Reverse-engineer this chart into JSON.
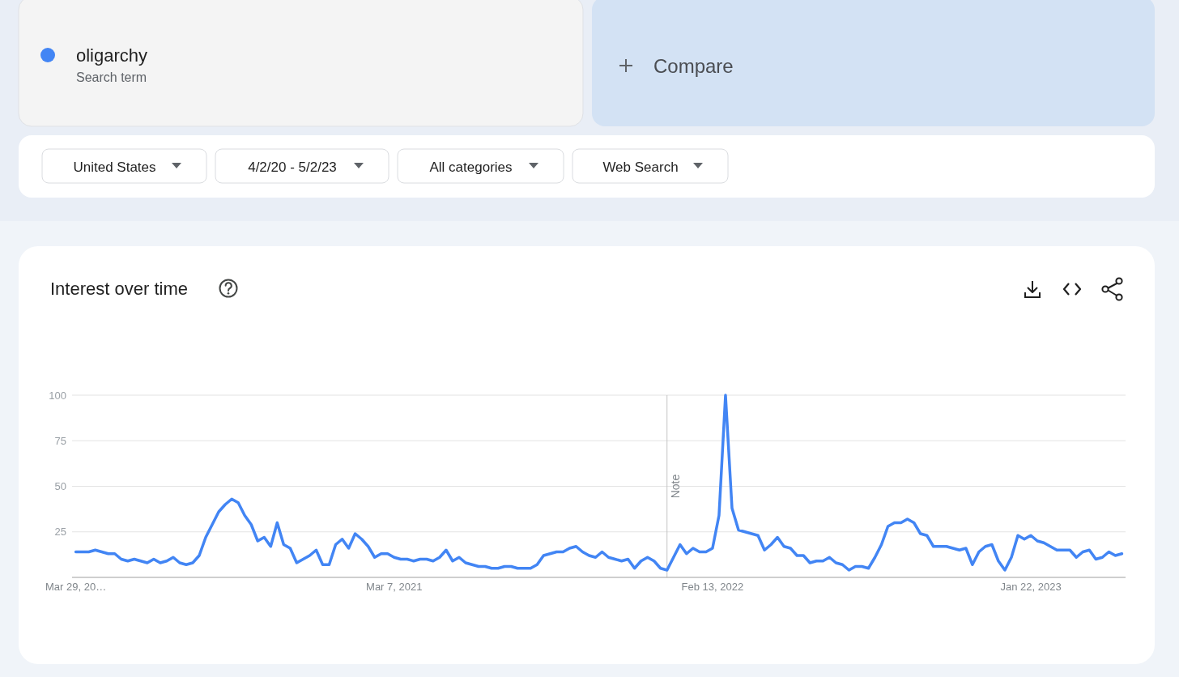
{
  "chart_data": {
    "type": "line",
    "title": "Interest over time",
    "x": [
      "2020-03-29",
      "2020-04-05",
      "2020-04-12",
      "2020-04-19",
      "2020-04-26",
      "2020-05-03",
      "2020-05-10",
      "2020-05-17",
      "2020-05-24",
      "2020-05-31",
      "2020-06-07",
      "2020-06-14",
      "2020-06-21",
      "2020-06-28",
      "2020-07-05",
      "2020-07-12",
      "2020-07-19",
      "2020-07-26",
      "2020-08-02",
      "2020-08-09",
      "2020-08-16",
      "2020-08-23",
      "2020-08-30",
      "2020-09-06",
      "2020-09-13",
      "2020-09-20",
      "2020-09-27",
      "2020-10-04",
      "2020-10-11",
      "2020-10-18",
      "2020-10-25",
      "2020-11-01",
      "2020-11-08",
      "2020-11-15",
      "2020-11-22",
      "2020-11-29",
      "2020-12-06",
      "2020-12-13",
      "2020-12-20",
      "2020-12-27",
      "2021-01-03",
      "2021-01-10",
      "2021-01-17",
      "2021-01-24",
      "2021-01-31",
      "2021-02-07",
      "2021-02-14",
      "2021-02-21",
      "2021-02-28",
      "2021-03-07",
      "2021-03-14",
      "2021-03-21",
      "2021-03-28",
      "2021-04-04",
      "2021-04-11",
      "2021-04-18",
      "2021-04-25",
      "2021-05-02",
      "2021-05-09",
      "2021-05-16",
      "2021-05-23",
      "2021-05-30",
      "2021-06-06",
      "2021-06-13",
      "2021-06-20",
      "2021-06-27",
      "2021-07-04",
      "2021-07-11",
      "2021-07-18",
      "2021-07-25",
      "2021-08-01",
      "2021-08-08",
      "2021-08-15",
      "2021-08-22",
      "2021-08-29",
      "2021-09-05",
      "2021-09-12",
      "2021-09-19",
      "2021-09-26",
      "2021-10-03",
      "2021-10-10",
      "2021-10-17",
      "2021-10-24",
      "2021-10-31",
      "2021-11-07",
      "2021-11-14",
      "2021-11-21",
      "2021-11-28",
      "2021-12-05",
      "2021-12-12",
      "2021-12-19",
      "2021-12-26",
      "2022-01-02",
      "2022-01-09",
      "2022-01-16",
      "2022-01-23",
      "2022-01-30",
      "2022-02-06",
      "2022-02-13",
      "2022-02-20",
      "2022-02-27",
      "2022-03-06",
      "2022-03-13",
      "2022-03-20",
      "2022-03-27",
      "2022-04-03",
      "2022-04-10",
      "2022-04-17",
      "2022-04-24",
      "2022-05-01",
      "2022-05-08",
      "2022-05-15",
      "2022-05-22",
      "2022-05-29",
      "2022-06-05",
      "2022-06-12",
      "2022-06-19",
      "2022-06-26",
      "2022-07-03",
      "2022-07-10",
      "2022-07-17",
      "2022-07-24",
      "2022-07-31",
      "2022-08-07",
      "2022-08-14",
      "2022-08-21",
      "2022-08-28",
      "2022-09-04",
      "2022-09-11",
      "2022-09-18",
      "2022-09-25",
      "2022-10-02",
      "2022-10-09",
      "2022-10-16",
      "2022-10-23",
      "2022-10-30",
      "2022-11-06",
      "2022-11-13",
      "2022-11-20",
      "2022-11-27",
      "2022-12-04",
      "2022-12-11",
      "2022-12-18",
      "2022-12-25",
      "2023-01-01",
      "2023-01-08",
      "2023-01-15",
      "2023-01-22",
      "2023-01-29",
      "2023-02-05",
      "2023-02-12",
      "2023-02-19",
      "2023-02-26",
      "2023-03-05",
      "2023-03-12",
      "2023-03-19",
      "2023-03-26",
      "2023-04-02",
      "2023-04-09",
      "2023-04-16",
      "2023-04-23",
      "2023-04-30"
    ],
    "series": [
      {
        "name": "oligarchy",
        "color": "#4285f4",
        "values": [
          14,
          14,
          14,
          15,
          14,
          13,
          13,
          10,
          9,
          10,
          9,
          8,
          10,
          8,
          9,
          11,
          8,
          7,
          8,
          12,
          22,
          29,
          36,
          40,
          43,
          41,
          34,
          29,
          20,
          22,
          17,
          30,
          18,
          16,
          8,
          10,
          12,
          15,
          7,
          7,
          18,
          21,
          16,
          24,
          21,
          17,
          11,
          13,
          13,
          11,
          10,
          10,
          9,
          10,
          10,
          9,
          11,
          15,
          9,
          11,
          8,
          7,
          6,
          6,
          5,
          5,
          6,
          6,
          5,
          5,
          5,
          7,
          12,
          13,
          14,
          14,
          16,
          17,
          14,
          12,
          11,
          14,
          11,
          10,
          9,
          10,
          5,
          9,
          11,
          9,
          5,
          4,
          11,
          18,
          13,
          16,
          14,
          14,
          16,
          34,
          100,
          38,
          26,
          25,
          24,
          23,
          15,
          18,
          22,
          17,
          16,
          12,
          12,
          8,
          9,
          9,
          11,
          8,
          7,
          4,
          6,
          6,
          5,
          11,
          18,
          28,
          30,
          30,
          32,
          30,
          24,
          23,
          17,
          17,
          17,
          16,
          15,
          16,
          7,
          14,
          17,
          18,
          9,
          4,
          11,
          23,
          21,
          23,
          20,
          19,
          17,
          15,
          15,
          15,
          11,
          14,
          15,
          10,
          11,
          14,
          12,
          13
        ]
      }
    ],
    "xlim": [
      "2020-03-25",
      "2023-05-04"
    ],
    "xticks": [
      {
        "value": "2020-03-29",
        "label": "Mar 29, 20…"
      },
      {
        "value": "2021-03-07",
        "label": "Mar 7, 2021"
      },
      {
        "value": "2022-02-13",
        "label": "Feb 13, 2022"
      },
      {
        "value": "2023-01-22",
        "label": "Jan 22, 2023"
      }
    ],
    "ylim": [
      0,
      100
    ],
    "yticks": [
      25,
      50,
      75,
      100
    ],
    "grid": "y",
    "legend": "top left",
    "ref_lines": [
      {
        "axis": "x",
        "value": "2021-12-26",
        "label": "Note",
        "color": "#c4c4c4"
      }
    ],
    "annotations": [
      "Search term",
      "Compare",
      "United States",
      "4/2/20 - 5/2/23",
      "All categories",
      "Web Search"
    ]
  }
}
